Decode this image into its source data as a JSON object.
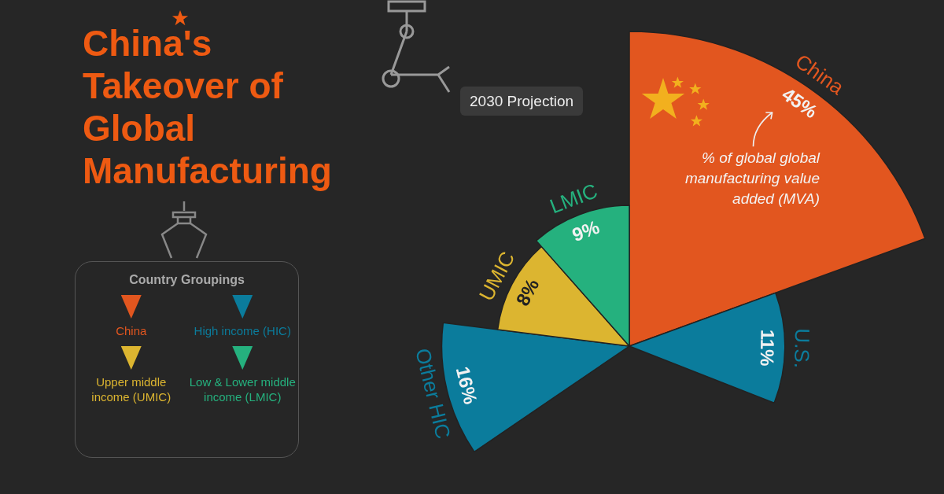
{
  "chart_data": {
    "type": "other",
    "title": "China's Takeover of Global Manufacturing",
    "subtitle": "2030 Projection",
    "categories": [
      "China",
      "U.S.",
      null,
      null,
      null,
      "Other HIC",
      "UMIC",
      "LMIC"
    ],
    "values": [
      45,
      11,
      null,
      null,
      null,
      16,
      8,
      9
    ],
    "colors": [
      "#e2561f",
      "#0b7c9c",
      "#0b7c9c",
      "#0b7c9c",
      "#0b7c9c",
      "#0b7c9c",
      "#dcb530",
      "#25b17e"
    ],
    "value_labels": [
      "45%",
      "11%",
      null,
      null,
      null,
      "16%",
      "8%",
      "9%"
    ],
    "legend_title": "Country Groupings",
    "annotations": [
      "% of global global manufacturing value added (MVA)",
      "China",
      "High income (HIC)",
      "Upper middle income (UMIC)",
      "Low & Lower middle income (LMIC)"
    ]
  }
}
